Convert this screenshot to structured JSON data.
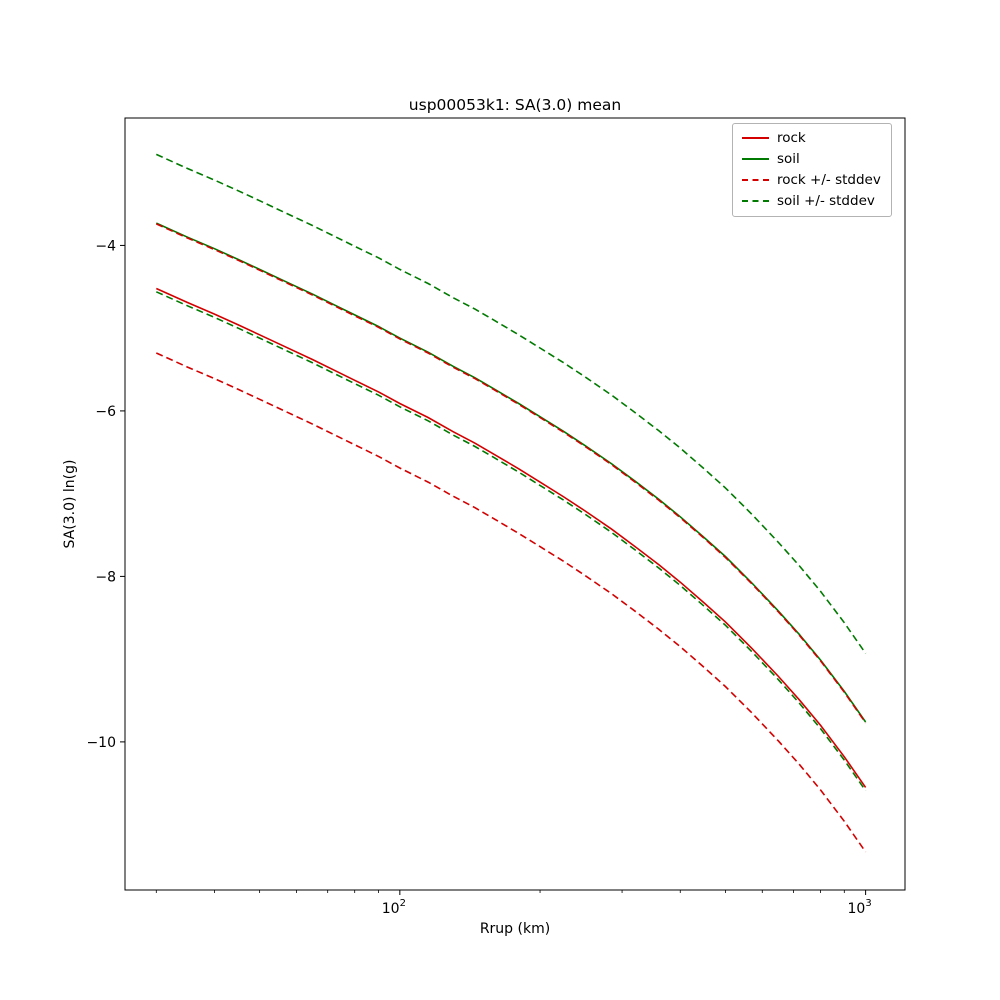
{
  "figure": {
    "title": "usp00053k1: SA(3.0) mean",
    "xlabel": "Rrup (km)",
    "ylabel": "SA(3.0) ln(g)",
    "background": "#ffffff"
  },
  "colors": {
    "rock": "#d40000",
    "soil": "#007a00",
    "axis": "#000000",
    "legend_border": "#b3b3b3"
  },
  "legend": {
    "position": "upper right",
    "items": [
      {
        "label": "rock",
        "color": "#d40000",
        "dash": false
      },
      {
        "label": "soil",
        "color": "#007a00",
        "dash": false
      },
      {
        "label": "rock +/- stddev",
        "color": "#d40000",
        "dash": true
      },
      {
        "label": "soil +/- stddev",
        "color": "#007a00",
        "dash": true
      }
    ]
  },
  "chart_data": {
    "type": "line",
    "title": "usp00053k1: SA(3.0) mean",
    "xlabel": "Rrup (km)",
    "ylabel": "SA(3.0) ln(g)",
    "x_scale": "log",
    "y_scale": "linear",
    "grid": false,
    "legend_position": "upper right",
    "xlim": [
      25.7,
      1215
    ],
    "ylim": [
      -11.79,
      -2.46
    ],
    "x_ticks": [
      {
        "value": 100,
        "base": "10",
        "exp": "2"
      },
      {
        "value": 1000,
        "base": "10",
        "exp": "3"
      }
    ],
    "x_minor_ticks": [
      30,
      40,
      50,
      60,
      70,
      80,
      90,
      200,
      300,
      400,
      500,
      600,
      700,
      800,
      900
    ],
    "y_ticks": [
      {
        "value": -4,
        "label": "−4"
      },
      {
        "value": -6,
        "label": "−6"
      },
      {
        "value": -8,
        "label": "−8"
      },
      {
        "value": -10,
        "label": "−10"
      }
    ],
    "x": [
      30,
      35,
      40,
      45,
      50,
      57,
      65,
      73,
      80,
      90,
      100,
      115,
      130,
      145,
      160,
      180,
      200,
      225,
      250,
      285,
      320,
      360,
      400,
      450,
      500,
      570,
      650,
      720,
      800,
      900,
      1000
    ],
    "series": [
      {
        "name": "rock",
        "color": "#d40000",
        "style": "solid",
        "values": [
          -4.52,
          -4.69,
          -4.83,
          -4.96,
          -5.08,
          -5.23,
          -5.38,
          -5.52,
          -5.63,
          -5.77,
          -5.91,
          -6.08,
          -6.25,
          -6.39,
          -6.53,
          -6.7,
          -6.86,
          -7.04,
          -7.21,
          -7.43,
          -7.64,
          -7.86,
          -8.07,
          -8.32,
          -8.55,
          -8.87,
          -9.21,
          -9.49,
          -9.8,
          -10.18,
          -10.55
        ]
      },
      {
        "name": "soil",
        "color": "#007a00",
        "style": "solid",
        "values": [
          -3.73,
          -3.9,
          -4.04,
          -4.17,
          -4.29,
          -4.44,
          -4.59,
          -4.73,
          -4.84,
          -4.98,
          -5.12,
          -5.29,
          -5.46,
          -5.6,
          -5.74,
          -5.91,
          -6.07,
          -6.25,
          -6.42,
          -6.64,
          -6.85,
          -7.07,
          -7.28,
          -7.53,
          -7.76,
          -8.08,
          -8.42,
          -8.7,
          -9.01,
          -9.39,
          -9.76
        ]
      },
      {
        "name": "rock plus stddev",
        "color": "#d40000",
        "style": "dashed",
        "values": [
          -3.74,
          -3.91,
          -4.05,
          -4.18,
          -4.3,
          -4.45,
          -4.6,
          -4.74,
          -4.85,
          -4.99,
          -5.13,
          -5.3,
          -5.47,
          -5.61,
          -5.75,
          -5.92,
          -6.08,
          -6.26,
          -6.43,
          -6.65,
          -6.86,
          -7.08,
          -7.29,
          -7.54,
          -7.77,
          -8.09,
          -8.43,
          -8.71,
          -9.02,
          -9.4,
          -9.77
        ]
      },
      {
        "name": "rock minus stddev",
        "color": "#d40000",
        "style": "dashed",
        "values": [
          -5.3,
          -5.47,
          -5.61,
          -5.74,
          -5.86,
          -6.01,
          -6.16,
          -6.3,
          -6.41,
          -6.55,
          -6.69,
          -6.86,
          -7.03,
          -7.17,
          -7.31,
          -7.48,
          -7.64,
          -7.82,
          -7.99,
          -8.21,
          -8.42,
          -8.64,
          -8.85,
          -9.1,
          -9.33,
          -9.65,
          -9.99,
          -10.27,
          -10.58,
          -10.96,
          -11.33
        ]
      },
      {
        "name": "soil plus stddev",
        "color": "#007a00",
        "style": "dashed",
        "values": [
          -2.9,
          -3.07,
          -3.21,
          -3.34,
          -3.46,
          -3.61,
          -3.76,
          -3.9,
          -4.01,
          -4.15,
          -4.29,
          -4.46,
          -4.63,
          -4.77,
          -4.91,
          -5.08,
          -5.24,
          -5.42,
          -5.59,
          -5.81,
          -6.02,
          -6.24,
          -6.45,
          -6.7,
          -6.93,
          -7.25,
          -7.59,
          -7.87,
          -8.18,
          -8.56,
          -8.93
        ]
      },
      {
        "name": "soil minus stddev",
        "color": "#007a00",
        "style": "dashed",
        "values": [
          -4.56,
          -4.73,
          -4.87,
          -5.0,
          -5.12,
          -5.27,
          -5.42,
          -5.56,
          -5.67,
          -5.81,
          -5.95,
          -6.12,
          -6.29,
          -6.43,
          -6.57,
          -6.74,
          -6.9,
          -7.08,
          -7.25,
          -7.47,
          -7.68,
          -7.9,
          -8.11,
          -8.36,
          -8.59,
          -8.91,
          -9.25,
          -9.53,
          -9.84,
          -10.22,
          -10.59
        ]
      }
    ]
  }
}
